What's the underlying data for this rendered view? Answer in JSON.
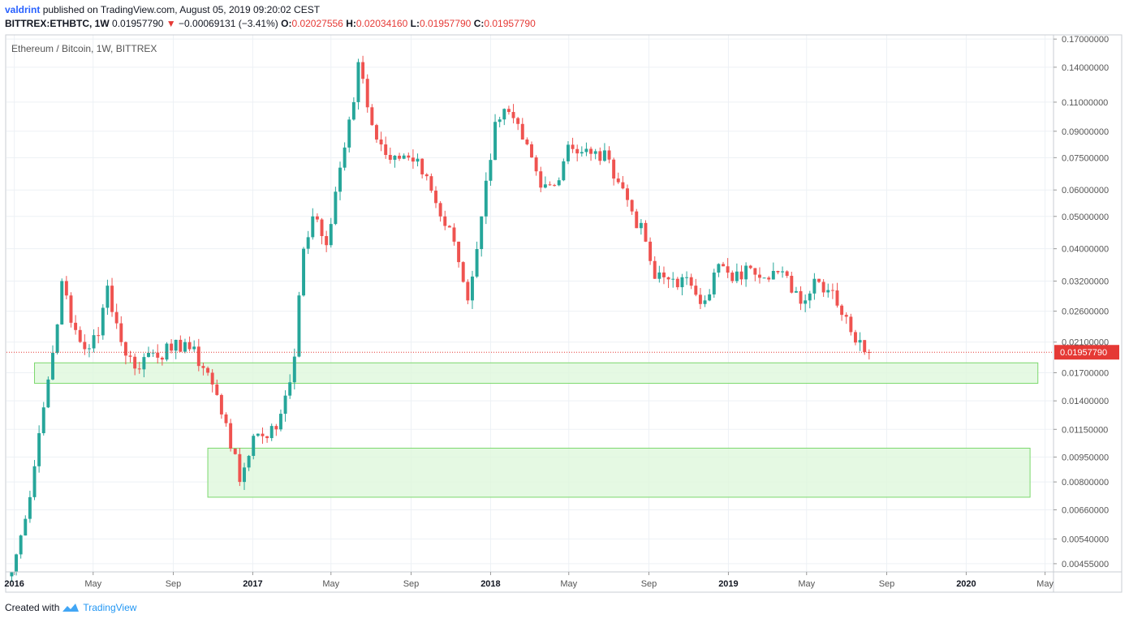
{
  "header": {
    "author": "valdrint",
    "published_text": "published on TradingView.com, August 05, 2019 09:20:02 CEST",
    "symbol": "BITTREX:ETHBTC, 1W",
    "price": "0.01957790",
    "change": "−0.00069131 (−3.41%)",
    "open_label": "O:",
    "open": "0.02027556",
    "high_label": "H:",
    "high": "0.02034160",
    "low_label": "L:",
    "low": "0.01957790",
    "close_label": "C:",
    "close": "0.01957790"
  },
  "footer": {
    "created_with": "Created with",
    "brand": "TradingView"
  },
  "colors": {
    "up": "#26a69a",
    "down": "#ef5350",
    "zone_fill": "#dff7dc",
    "zone_stroke": "#7bd86c",
    "price_line": "#e53935",
    "grid": "#edf1f5",
    "axis_text": "#555555"
  },
  "chart_data": {
    "type": "candlestick",
    "title": "Ethereum / Bitcoin, 1W, BITTREX",
    "y_scale": "log",
    "ylim": [
      0.0043,
      0.175
    ],
    "y_ticks": [
      {
        "value": 0.17,
        "label": "0.17000000"
      },
      {
        "value": 0.14,
        "label": "0.14000000"
      },
      {
        "value": 0.11,
        "label": "0.11000000"
      },
      {
        "value": 0.09,
        "label": "0.09000000"
      },
      {
        "value": 0.075,
        "label": "0.07500000"
      },
      {
        "value": 0.06,
        "label": "0.06000000"
      },
      {
        "value": 0.05,
        "label": "0.05000000"
      },
      {
        "value": 0.04,
        "label": "0.04000000"
      },
      {
        "value": 0.032,
        "label": "0.03200000"
      },
      {
        "value": 0.026,
        "label": "0.02600000"
      },
      {
        "value": 0.021,
        "label": "0.02100000"
      },
      {
        "value": 0.017,
        "label": "0.01700000"
      },
      {
        "value": 0.014,
        "label": "0.01400000"
      },
      {
        "value": 0.0115,
        "label": "0.01150000"
      },
      {
        "value": 0.0095,
        "label": "0.00950000"
      },
      {
        "value": 0.008,
        "label": "0.00800000"
      },
      {
        "value": 0.0066,
        "label": "0.00660000"
      },
      {
        "value": 0.0054,
        "label": "0.00540000"
      },
      {
        "value": 0.00455,
        "label": "0.00455000"
      }
    ],
    "x_ticks": [
      {
        "date": "2016-01-01",
        "label": "2016",
        "bold": true
      },
      {
        "date": "2016-05-01",
        "label": "May",
        "bold": false
      },
      {
        "date": "2016-09-01",
        "label": "Sep",
        "bold": false
      },
      {
        "date": "2017-01-01",
        "label": "2017",
        "bold": true
      },
      {
        "date": "2017-05-01",
        "label": "May",
        "bold": false
      },
      {
        "date": "2017-09-01",
        "label": "Sep",
        "bold": false
      },
      {
        "date": "2018-01-01",
        "label": "2018",
        "bold": true
      },
      {
        "date": "2018-05-01",
        "label": "May",
        "bold": false
      },
      {
        "date": "2018-09-01",
        "label": "Sep",
        "bold": false
      },
      {
        "date": "2019-01-01",
        "label": "2019",
        "bold": true
      },
      {
        "date": "2019-05-01",
        "label": "May",
        "bold": false
      },
      {
        "date": "2019-09-01",
        "label": "Sep",
        "bold": false
      },
      {
        "date": "2020-01-01",
        "label": "2020",
        "bold": true
      },
      {
        "date": "2020-05-01",
        "label": "May",
        "bold": false
      }
    ],
    "last_price": {
      "value": 0.0195779,
      "label": "0.01957790"
    },
    "zones": [
      {
        "date_from": "2016-02-01",
        "date_to": "2020-04-20",
        "low": 0.0158,
        "high": 0.0182
      },
      {
        "date_from": "2016-10-24",
        "date_to": "2020-04-08",
        "low": 0.0072,
        "high": 0.0101
      }
    ],
    "series_keyframes": [
      {
        "date": "2015-12-28",
        "close": 0.0043
      },
      {
        "date": "2016-01-18",
        "close": 0.0062
      },
      {
        "date": "2016-02-08",
        "close": 0.0112
      },
      {
        "date": "2016-02-29",
        "close": 0.0195
      },
      {
        "date": "2016-03-14",
        "close": 0.032
      },
      {
        "date": "2016-03-28",
        "close": 0.024
      },
      {
        "date": "2016-04-18",
        "close": 0.02
      },
      {
        "date": "2016-05-09",
        "close": 0.022
      },
      {
        "date": "2016-05-23",
        "close": 0.031
      },
      {
        "date": "2016-06-13",
        "close": 0.021
      },
      {
        "date": "2016-07-04",
        "close": 0.0175
      },
      {
        "date": "2016-07-25",
        "close": 0.0195
      },
      {
        "date": "2016-08-29",
        "close": 0.0198
      },
      {
        "date": "2016-09-19",
        "close": 0.021
      },
      {
        "date": "2016-10-24",
        "close": 0.017
      },
      {
        "date": "2016-11-21",
        "close": 0.012
      },
      {
        "date": "2016-12-12",
        "close": 0.008
      },
      {
        "date": "2017-01-02",
        "close": 0.011
      },
      {
        "date": "2017-02-06",
        "close": 0.0115
      },
      {
        "date": "2017-03-06",
        "close": 0.019
      },
      {
        "date": "2017-03-20",
        "close": 0.04
      },
      {
        "date": "2017-04-03",
        "close": 0.05
      },
      {
        "date": "2017-04-24",
        "close": 0.041
      },
      {
        "date": "2017-05-15",
        "close": 0.07
      },
      {
        "date": "2017-06-05",
        "close": 0.11
      },
      {
        "date": "2017-06-12",
        "close": 0.145
      },
      {
        "date": "2017-07-10",
        "close": 0.085
      },
      {
        "date": "2017-08-07",
        "close": 0.076
      },
      {
        "date": "2017-09-04",
        "close": 0.073
      },
      {
        "date": "2017-09-25",
        "close": 0.066
      },
      {
        "date": "2017-10-16",
        "close": 0.05
      },
      {
        "date": "2017-11-06",
        "close": 0.042
      },
      {
        "date": "2017-11-27",
        "close": 0.028
      },
      {
        "date": "2017-12-18",
        "close": 0.05
      },
      {
        "date": "2018-01-08",
        "close": 0.096
      },
      {
        "date": "2018-01-22",
        "close": 0.105
      },
      {
        "date": "2018-02-19",
        "close": 0.085
      },
      {
        "date": "2018-03-19",
        "close": 0.061
      },
      {
        "date": "2018-04-09",
        "close": 0.062
      },
      {
        "date": "2018-04-30",
        "close": 0.082
      },
      {
        "date": "2018-06-04",
        "close": 0.077
      },
      {
        "date": "2018-07-02",
        "close": 0.074
      },
      {
        "date": "2018-07-30",
        "close": 0.056
      },
      {
        "date": "2018-08-27",
        "close": 0.042
      },
      {
        "date": "2018-09-10",
        "close": 0.0325
      },
      {
        "date": "2018-10-08",
        "close": 0.0325
      },
      {
        "date": "2018-11-05",
        "close": 0.031
      },
      {
        "date": "2018-11-26",
        "close": 0.028
      },
      {
        "date": "2018-12-17",
        "close": 0.036
      },
      {
        "date": "2019-01-07",
        "close": 0.032
      },
      {
        "date": "2019-02-04",
        "close": 0.035
      },
      {
        "date": "2019-03-18",
        "close": 0.034
      },
      {
        "date": "2019-04-29",
        "close": 0.028
      },
      {
        "date": "2019-05-13",
        "close": 0.0325
      },
      {
        "date": "2019-06-10",
        "close": 0.03
      },
      {
        "date": "2019-07-08",
        "close": 0.0225
      },
      {
        "date": "2019-07-22",
        "close": 0.0213
      },
      {
        "date": "2019-08-05",
        "close": 0.0196
      }
    ]
  }
}
